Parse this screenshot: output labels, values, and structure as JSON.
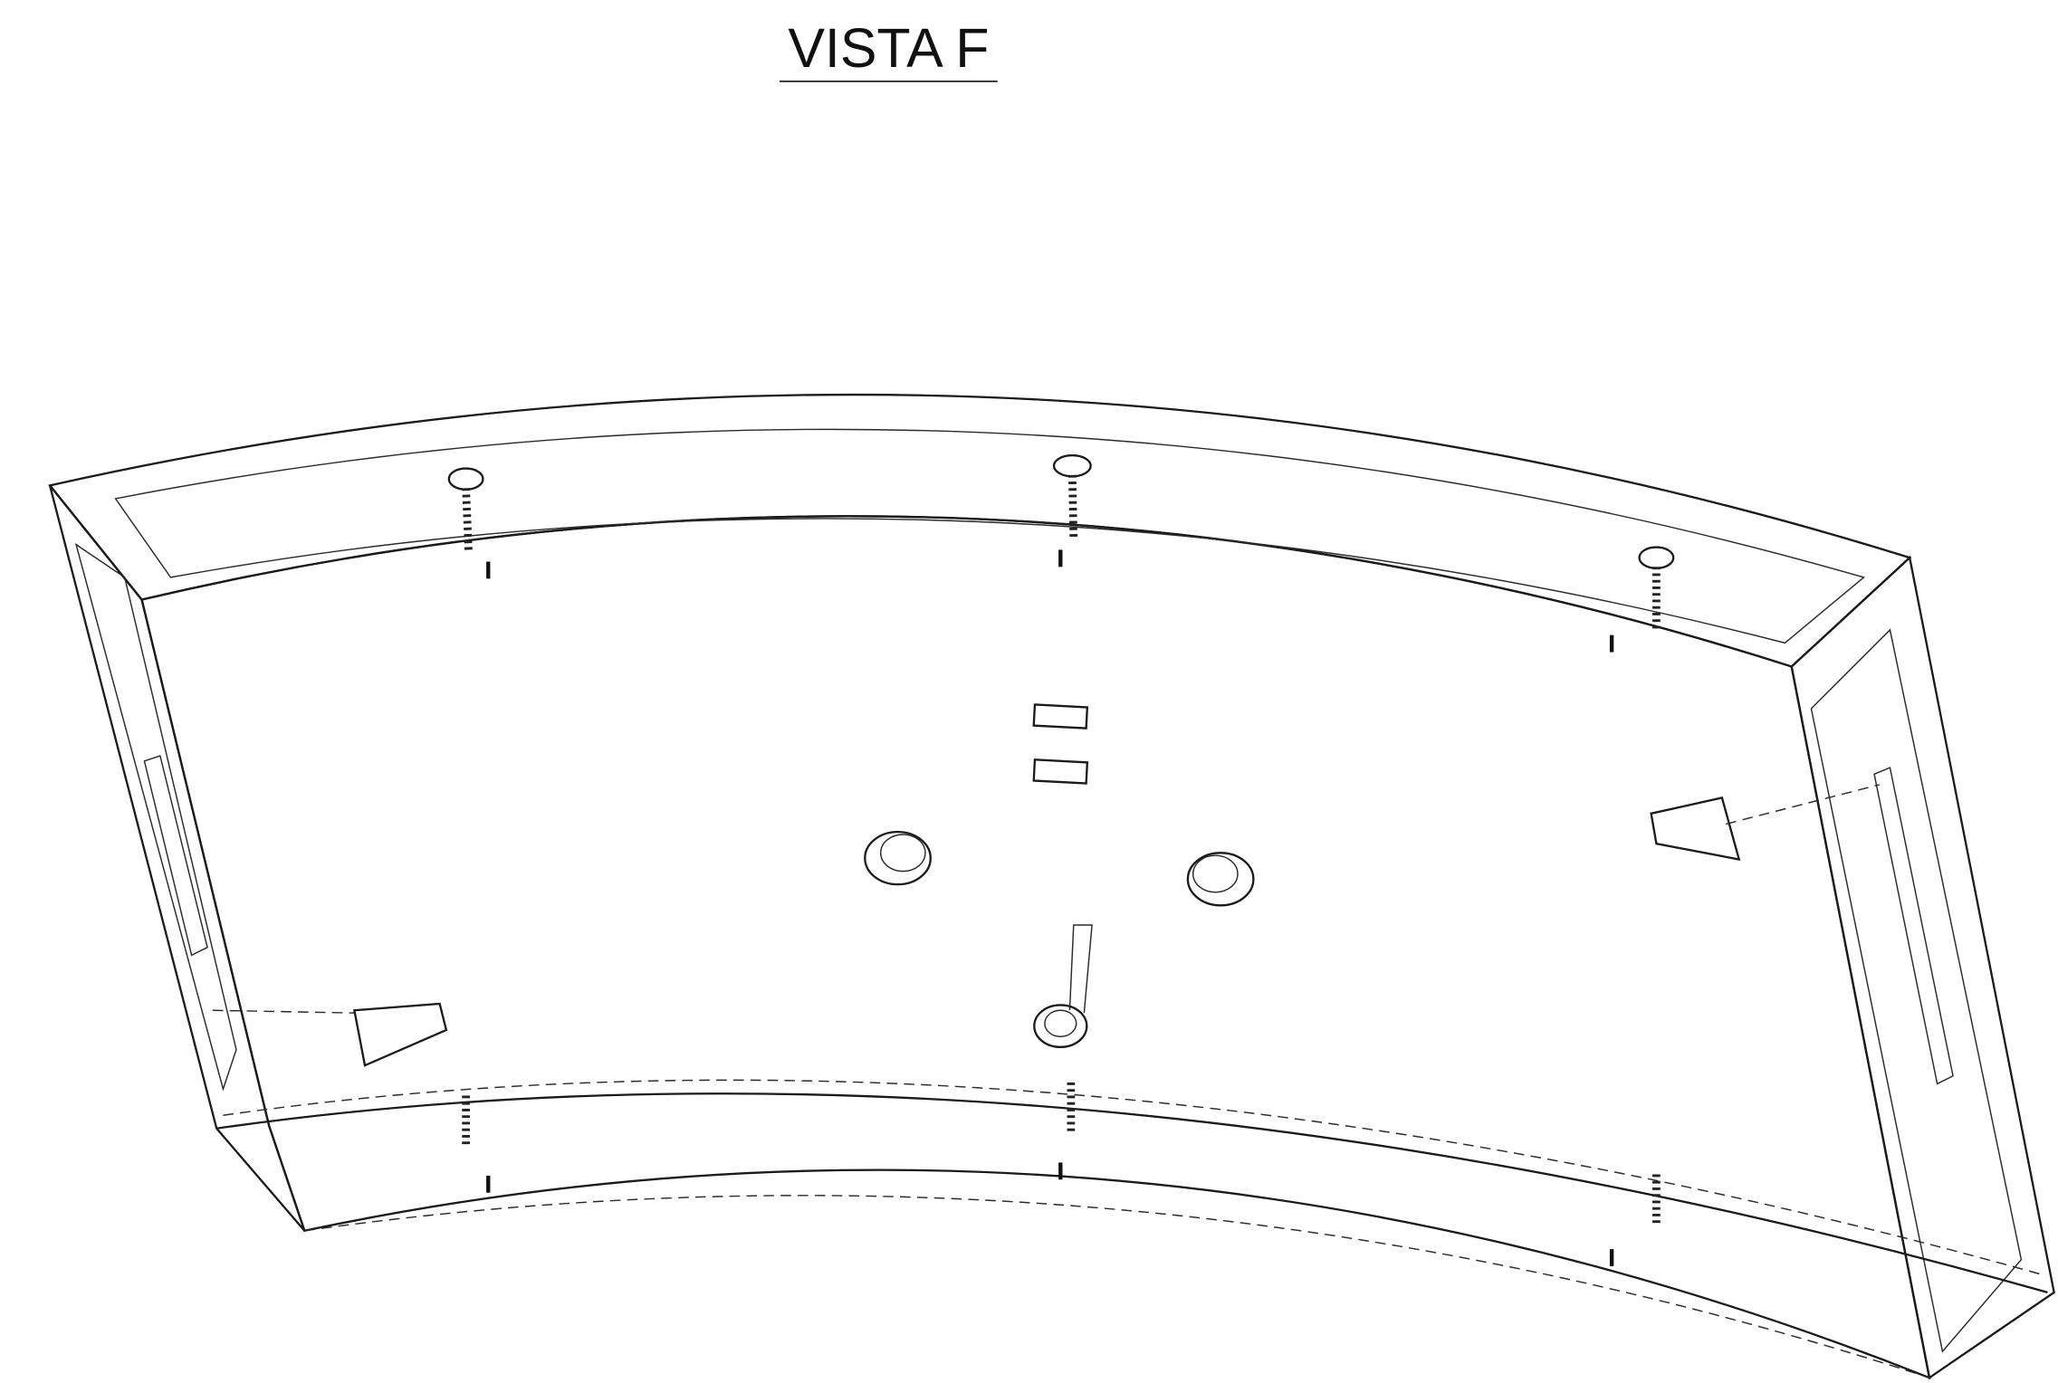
{
  "header": {
    "title": "VISTA F"
  }
}
